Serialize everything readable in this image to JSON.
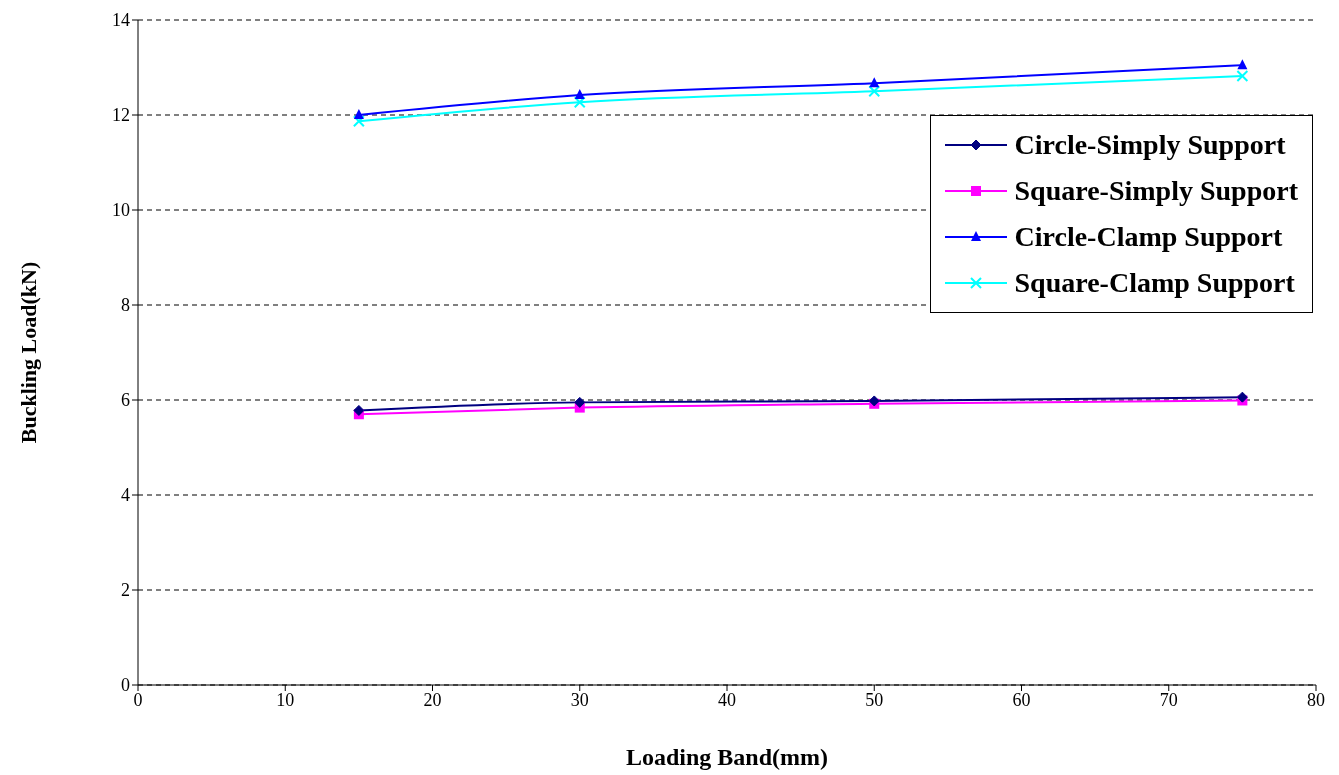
{
  "chart_data": {
    "type": "line",
    "xlabel": "Loading Band(mm)",
    "ylabel": "Buckling Load(kN)",
    "x": [
      15,
      30,
      50,
      75
    ],
    "series": [
      {
        "name": "Circle-Simply Support",
        "color": "#000080",
        "marker": "diamond",
        "values": [
          5.78,
          5.95,
          5.98,
          6.06
        ]
      },
      {
        "name": "Square-Simply Support",
        "color": "#ff00ff",
        "marker": "square",
        "values": [
          5.7,
          5.84,
          5.92,
          5.99
        ]
      },
      {
        "name": "Circle-Clamp Support",
        "color": "#0000ff",
        "marker": "triangle",
        "values": [
          12.0,
          12.42,
          12.67,
          13.05
        ]
      },
      {
        "name": "Square-Clamp Support",
        "color": "#00ffff",
        "marker": "cross",
        "values": [
          11.87,
          12.27,
          12.5,
          12.82
        ]
      }
    ],
    "xlim": [
      0,
      80
    ],
    "xticks": [
      0,
      10,
      20,
      30,
      40,
      50,
      60,
      70,
      80
    ],
    "ylim": [
      0,
      14
    ],
    "yticks": [
      0,
      2,
      4,
      6,
      8,
      10,
      12,
      14
    ],
    "grid": "y",
    "legend": "top right",
    "line_style": "solid"
  }
}
